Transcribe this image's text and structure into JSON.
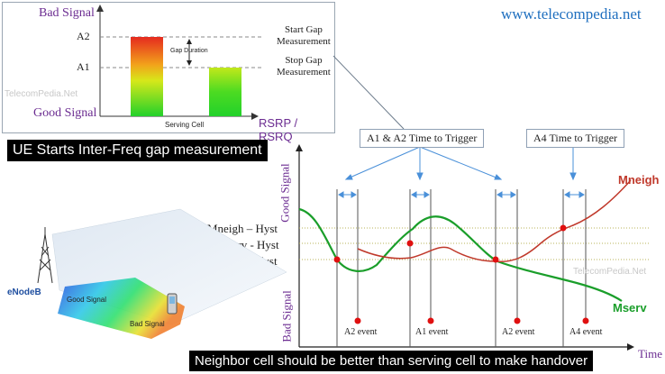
{
  "website": "www.telecompedia.net",
  "watermark": "TelecomPedia.Net",
  "top_panel": {
    "bad_signal": "Bad Signal",
    "good_signal": "Good Signal",
    "a2_label": "A2",
    "a1_label": "A1",
    "gap_duration": "Gap Duration",
    "start_gap": [
      "Start Gap",
      "Measurement"
    ],
    "stop_gap": [
      "Stop Gap",
      "Measurement"
    ],
    "serving_cell": "Serving Cell",
    "x_axis": "RSRP / RSRQ"
  },
  "banner_top": "UE Starts Inter-Freq gap measurement",
  "banner_bottom": "Neighbor cell should be better than serving cell to make handover",
  "callouts": {
    "a1a2": "A1 & A2 Time to Trigger",
    "a4": "A4 Time to Trigger"
  },
  "main_chart": {
    "y_good": "Good Signal",
    "y_bad": "Bad Signal",
    "x_label": "Time",
    "thresholds": [
      "Mneigh – Hyst",
      "Mserv - Hyst",
      "Mserv + Hyst"
    ],
    "series": [
      "Mneigh",
      "Mserv"
    ],
    "events": [
      "A2 event",
      "A1 event",
      "A2 event",
      "A4 event"
    ],
    "colors": {
      "mserv": "#1a9e2a",
      "mneigh": "#c0392b",
      "event": "#e01010",
      "arrow": "#4a90d9"
    }
  },
  "enodeb": {
    "label": "eNodeB",
    "good_signal": "Good Signal",
    "bad_signal": "Bad Signal"
  }
}
